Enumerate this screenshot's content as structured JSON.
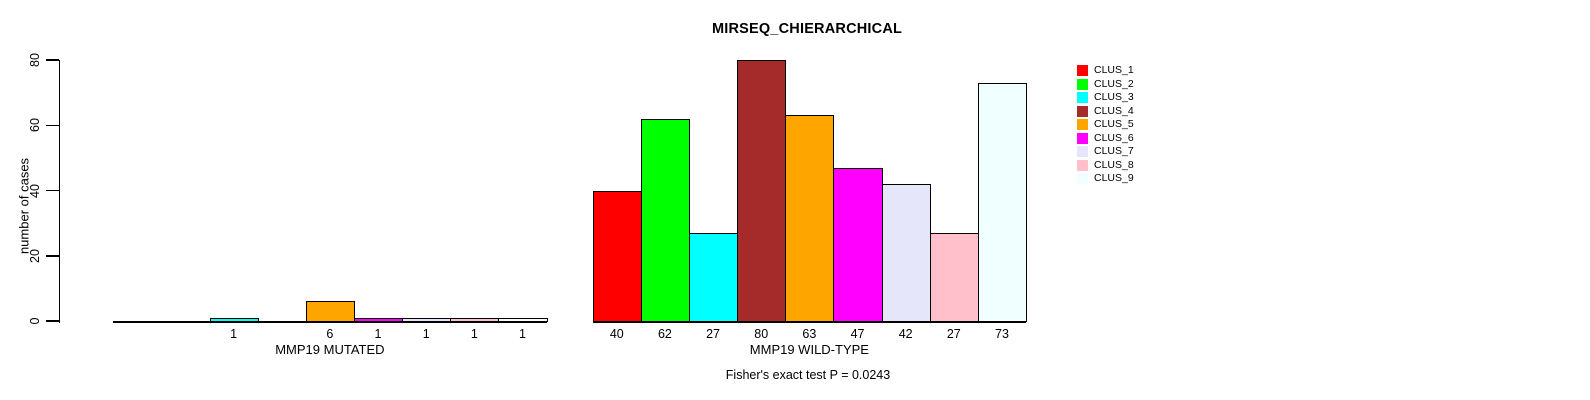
{
  "chart_data": {
    "type": "bar",
    "title": "MIRSEQ_CHIERARCHICAL",
    "ylabel": "number of cases",
    "annotation": "Fisher's exact test P = 0.0243",
    "ylim": [
      0,
      80
    ],
    "yticks": [
      0,
      20,
      40,
      60,
      80
    ],
    "grid": false,
    "legend_position": "topright",
    "clusters": [
      "CLUS_1",
      "CLUS_2",
      "CLUS_3",
      "CLUS_4",
      "CLUS_5",
      "CLUS_6",
      "CLUS_7",
      "CLUS_8",
      "CLUS_9"
    ],
    "cluster_colors": [
      "#FF0000",
      "#00FF00",
      "#00FFFF",
      "#A52A2A",
      "#FFA500",
      "#FF00FF",
      "#E6E6FA",
      "#FFC0CB",
      "#F0FFFF"
    ],
    "bar_border_color": "#000000",
    "groups": [
      {
        "label": "MMP19 MUTATED",
        "values": [
          0,
          0,
          1,
          0,
          6,
          1,
          1,
          1,
          1
        ]
      },
      {
        "label": "MMP19 WILD-TYPE",
        "values": [
          40,
          62,
          27,
          80,
          63,
          47,
          42,
          27,
          73
        ]
      }
    ],
    "bar_value_labels_shown": "values greater than zero are printed under each bar"
  }
}
